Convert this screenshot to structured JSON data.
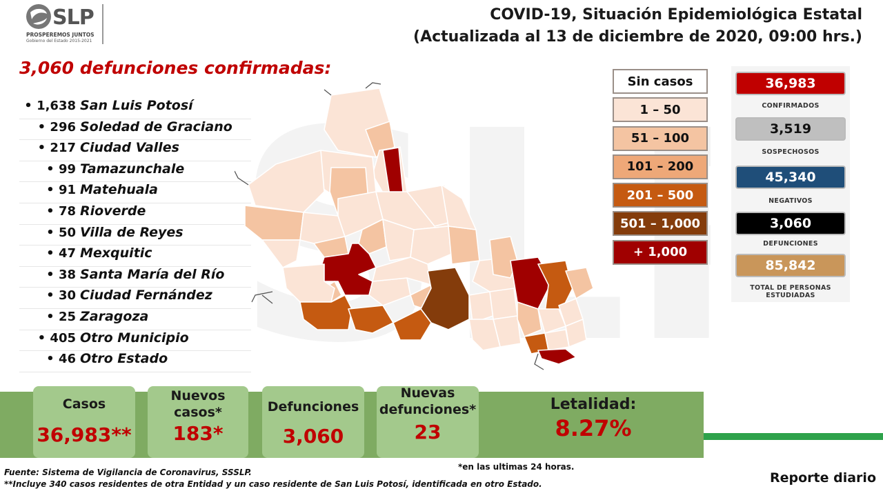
{
  "header": {
    "logo_text": "SLP",
    "logo_slogan": "PROSPEREMOS JUNTOS",
    "logo_gov": "Gobierno del Estado 2015-2021",
    "title_line1": "COVID-19, Situación Epidemiológica Estatal",
    "title_line2": "(Actualizada al 13 de diciembre de 2020, 09:00 hrs.)"
  },
  "deaths_headline": "3,060 defunciones confirmadas:",
  "municipalities": [
    {
      "count": "1,638",
      "name": "San Luis Potosí"
    },
    {
      "count": "296",
      "name": "Soledad de Graciano"
    },
    {
      "count": "217",
      "name": "Ciudad Valles"
    },
    {
      "count": "99",
      "name": "Tamazunchale"
    },
    {
      "count": "91",
      "name": "Matehuala"
    },
    {
      "count": "78",
      "name": "Rioverde"
    },
    {
      "count": "50",
      "name": "Villa de Reyes"
    },
    {
      "count": "47",
      "name": "Mexquitic"
    },
    {
      "count": "38",
      "name": "Santa María del Río"
    },
    {
      "count": "30",
      "name": "Ciudad Fernández"
    },
    {
      "count": "25",
      "name": "Zaragoza"
    },
    {
      "count": "405",
      "name": "Otro Municipio"
    },
    {
      "count": "46",
      "name": "Otro Estado"
    }
  ],
  "legend": [
    {
      "label": "Sin casos",
      "color": "#ffffff",
      "text": "#111111"
    },
    {
      "label": "1 – 50",
      "color": "#fbe4d6",
      "text": "#111111"
    },
    {
      "label": "51 – 100",
      "color": "#f4c4a2",
      "text": "#111111"
    },
    {
      "label": "101 – 200",
      "color": "#eea878",
      "text": "#111111"
    },
    {
      "label": "201 – 500",
      "color": "#c55a11",
      "text": "#ffffff"
    },
    {
      "label": "501 – 1,000",
      "color": "#843c0b",
      "text": "#ffffff"
    },
    {
      "label": "+ 1,000",
      "color": "#a00000",
      "text": "#ffffff"
    }
  ],
  "stats": [
    {
      "value": "36,983",
      "label": "CONFIRMADOS",
      "color": "#c00000",
      "text": "#ffffff"
    },
    {
      "value": "3,519",
      "label": "SOSPECHOSOS",
      "color": "#bfbfbf",
      "text": "#111111"
    },
    {
      "value": "45,340",
      "label": "NEGATIVOS",
      "color": "#1f4e79",
      "text": "#ffffff"
    },
    {
      "value": "3,060",
      "label": "DEFUNCIONES",
      "color": "#000000",
      "text": "#ffffff"
    },
    {
      "value": "85,842",
      "label_line1": "TOTAL DE PERSONAS",
      "label_line2": "ESTUDIADAS",
      "color": "#c9965a",
      "text": "#ffffff"
    }
  ],
  "cards": {
    "casos_label": "Casos",
    "casos_value": "36,983**",
    "nuevos_label_1": "Nuevos",
    "nuevos_label_2": "casos*",
    "nuevos_value": "183*",
    "def_label": "Defunciones",
    "def_value": "3,060",
    "nuevas_def_label_1": "Nuevas",
    "nuevas_def_label_2": "defunciones*",
    "nuevas_def_value": "23",
    "letalidad_label": "Letalidad:",
    "letalidad_value": "8.27%"
  },
  "notes": {
    "last24": "*en las ultimas 24 horas.",
    "source": "Fuente: Sistema de Vigilancia de Coronavirus, SSSLP.",
    "footnote": "**Incluye 340 casos residentes de otra Entidad y un caso residente de San Luis Potosí, identificada en otro Estado.",
    "report": "Reporte diario"
  },
  "colors": {
    "accent_red": "#c00000",
    "band_green": "#7fab62",
    "card_green": "#a3c98c",
    "line_green": "#2ea24b"
  }
}
